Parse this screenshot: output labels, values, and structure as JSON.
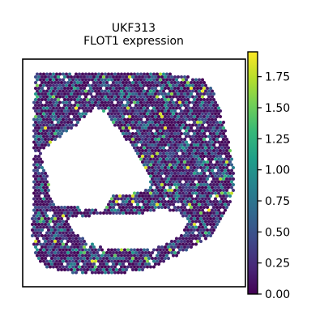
{
  "chart_data": {
    "type": "scatter",
    "subtype": "spatial-transcriptomics-hex-spot-plot",
    "title_line1": "UKF313",
    "title_line2": "FLOT1 expression",
    "xlabel": "",
    "ylabel": "",
    "colorbar": {
      "colormap": "viridis",
      "vmin": 0.0,
      "vmax": 1.95,
      "ticks": [
        0.0,
        0.25,
        0.5,
        0.75,
        1.0,
        1.25,
        1.5,
        1.75
      ],
      "tick_labels": [
        "0.00",
        "0.25",
        "0.50",
        "0.75",
        "1.00",
        "1.25",
        "1.50",
        "1.75"
      ]
    },
    "value_distribution": {
      "dominant": 0.1,
      "common": [
        0.3,
        0.5,
        0.7
      ],
      "sparse_high": [
        1.0,
        1.3,
        1.9
      ]
    },
    "viridis_stops": [
      "#440154",
      "#482878",
      "#3e4989",
      "#31688e",
      "#26828e",
      "#1f9e89",
      "#35b779",
      "#6ece58",
      "#b5de2b",
      "#fde725"
    ]
  }
}
